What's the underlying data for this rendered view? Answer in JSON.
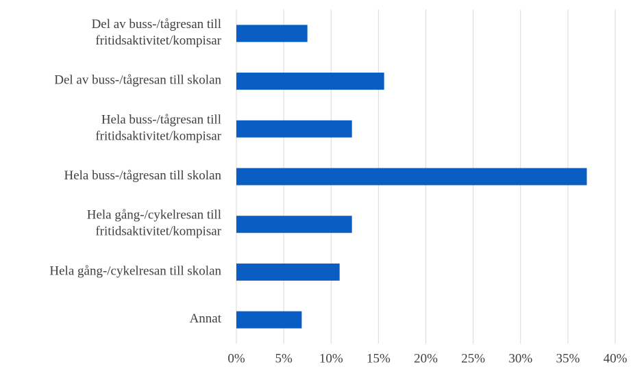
{
  "chart_data": {
    "type": "barh",
    "categories": [
      [
        "Del av buss-/tågresan till",
        "fritidsaktivitet/kompisar"
      ],
      [
        "Del av buss-/tågresan till skolan"
      ],
      [
        "Hela buss-/tågresan till",
        "fritidsaktivitet/kompisar"
      ],
      [
        "Hela buss-/tågresan till skolan"
      ],
      [
        "Hela gång-/cykelresan till",
        "fritidsaktivitet/kompisar"
      ],
      [
        "Hela gång-/cykelresan till skolan"
      ],
      [
        "Annat"
      ]
    ],
    "values": [
      7.5,
      15.6,
      12.2,
      37.0,
      12.2,
      10.9,
      6.9
    ],
    "color": "#0a5dc2",
    "xlim": [
      0,
      40
    ],
    "xticks": [
      {
        "value": 0,
        "label": "0%"
      },
      {
        "value": 5,
        "label": "5%"
      },
      {
        "value": 10,
        "label": "10%"
      },
      {
        "value": 15,
        "label": "15%"
      },
      {
        "value": 20,
        "label": "20%"
      },
      {
        "value": 25,
        "label": "25%"
      },
      {
        "value": 30,
        "label": "30%"
      },
      {
        "value": 35,
        "label": "35%"
      },
      {
        "value": 40,
        "label": "40%"
      }
    ],
    "grid": true
  }
}
